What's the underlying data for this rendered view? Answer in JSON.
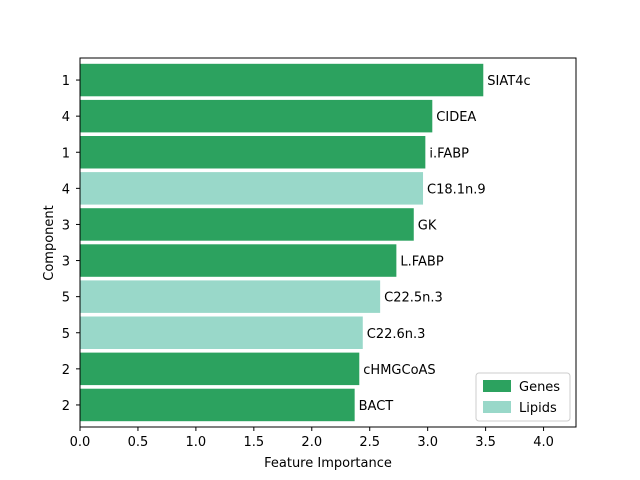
{
  "chart_data": {
    "type": "bar",
    "orientation": "horizontal",
    "xlabel": "Feature Importance",
    "ylabel": "Component",
    "xlim": [
      0,
      4.28
    ],
    "xticks": [
      "0.0",
      "0.5",
      "1.0",
      "1.5",
      "2.0",
      "2.5",
      "3.0",
      "3.5",
      "4.0"
    ],
    "grid": false,
    "legend_position": "bottom-right",
    "bars": [
      {
        "component": "1",
        "feature": "SIAT4c",
        "value": 3.48,
        "group": "Genes"
      },
      {
        "component": "4",
        "feature": "CIDEA",
        "value": 3.04,
        "group": "Genes"
      },
      {
        "component": "1",
        "feature": "i.FABP",
        "value": 2.98,
        "group": "Genes"
      },
      {
        "component": "4",
        "feature": "C18.1n.9",
        "value": 2.96,
        "group": "Lipids"
      },
      {
        "component": "3",
        "feature": "GK",
        "value": 2.88,
        "group": "Genes"
      },
      {
        "component": "3",
        "feature": "L.FABP",
        "value": 2.73,
        "group": "Genes"
      },
      {
        "component": "5",
        "feature": "C22.5n.3",
        "value": 2.59,
        "group": "Lipids"
      },
      {
        "component": "5",
        "feature": "C22.6n.3",
        "value": 2.44,
        "group": "Lipids"
      },
      {
        "component": "2",
        "feature": "cHMGCoAS",
        "value": 2.41,
        "group": "Genes"
      },
      {
        "component": "2",
        "feature": "BACT",
        "value": 2.37,
        "group": "Genes"
      }
    ],
    "legend": [
      {
        "name": "Genes",
        "color": "#2ca25f"
      },
      {
        "name": "Lipids",
        "color": "#99d8c9"
      }
    ]
  }
}
